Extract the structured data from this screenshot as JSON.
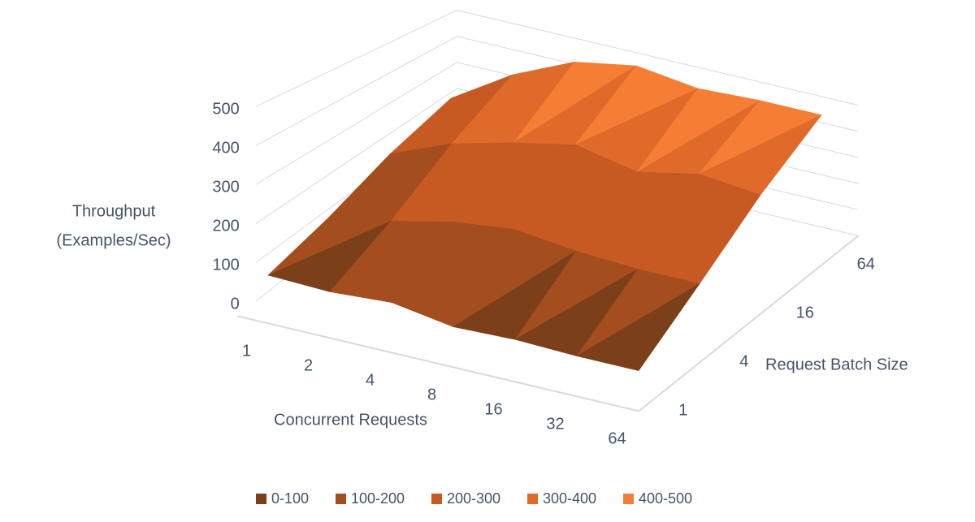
{
  "chart_data": {
    "type": "surface",
    "x_label": "Concurrent Requests",
    "y_label": "Request Batch Size",
    "z_label": [
      "Throughput",
      "(Examples/Sec)"
    ],
    "categories": [
      "1",
      "2",
      "4",
      "8",
      "16",
      "32",
      "64"
    ],
    "depth_categories": [
      "1",
      "4",
      "16",
      "64"
    ],
    "values": [
      [
        75,
        70,
        80,
        55,
        60,
        55,
        55
      ],
      [
        110,
        140,
        180,
        200,
        180,
        170,
        170
      ],
      [
        170,
        250,
        300,
        340,
        300,
        340,
        320
      ],
      [
        220,
        360,
        460,
        500,
        470,
        480,
        480
      ]
    ],
    "zlim": [
      0,
      500
    ],
    "zticks": [
      0,
      100,
      200,
      300,
      400,
      500
    ],
    "grid": true,
    "legend": [
      {
        "name": "0-100",
        "color": "#7b3f1a"
      },
      {
        "name": "100-200",
        "color": "#a44d1e"
      },
      {
        "name": "200-300",
        "color": "#c65a22"
      },
      {
        "name": "300-400",
        "color": "#e06a2a"
      },
      {
        "name": "400-500",
        "color": "#f57d34"
      }
    ]
  }
}
